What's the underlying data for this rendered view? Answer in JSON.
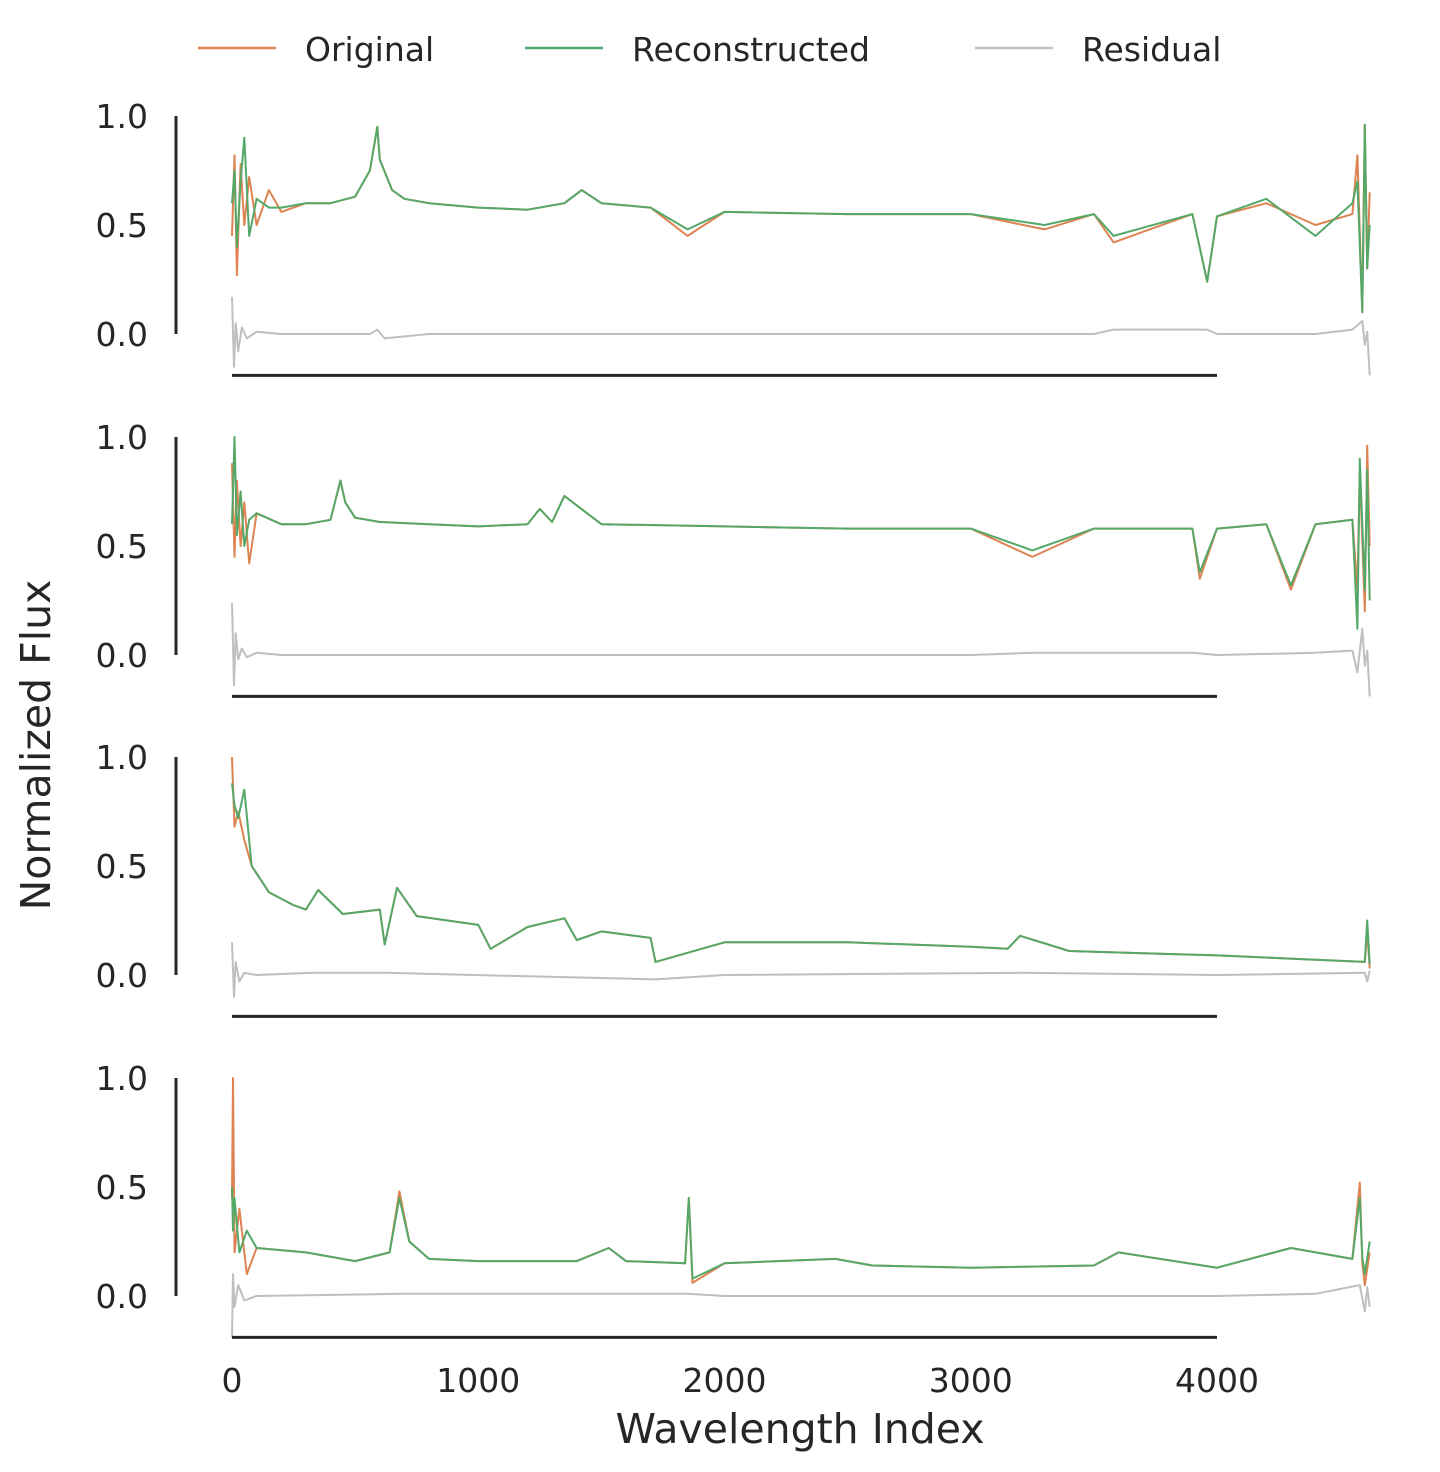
{
  "chart_data": {
    "type": "line",
    "xlabel": "Wavelength Index",
    "ylabel": "Normalized Flux",
    "xlim": [
      0,
      4620
    ],
    "ylim": [
      -0.19,
      1.0
    ],
    "xticks": [
      "0",
      "1000",
      "2000",
      "3000",
      "4000"
    ],
    "yticks": [
      "0.0",
      "0.5",
      "1.0"
    ],
    "grid": false,
    "legend_placement": "top-center",
    "legend": [
      "Original",
      "Reconstructed",
      "Residual"
    ],
    "colors": {
      "Original": "#dd8452",
      "Reconstructed": "#55a868",
      "Residual": "#bfbfbf"
    },
    "panels": [
      {
        "series": [
          {
            "name": "Original",
            "x": [
              0,
              10,
              20,
              35,
              50,
              70,
              100,
              150,
              200,
              300,
              400,
              500,
              560,
              590,
              600,
              650,
              700,
              800,
              1000,
              1200,
              1350,
              1420,
              1500,
              1700,
              1850,
              2000,
              2500,
              3000,
              3300,
              3500,
              3580,
              3900,
              3960,
              4000,
              4200,
              4400,
              4550,
              4570,
              4590,
              4600,
              4610,
              4620
            ],
            "y": [
              0.45,
              0.82,
              0.27,
              0.78,
              0.5,
              0.72,
              0.5,
              0.66,
              0.56,
              0.6,
              0.6,
              0.63,
              0.75,
              0.95,
              0.8,
              0.66,
              0.62,
              0.6,
              0.58,
              0.57,
              0.6,
              0.66,
              0.6,
              0.58,
              0.45,
              0.56,
              0.55,
              0.55,
              0.48,
              0.55,
              0.42,
              0.55,
              0.24,
              0.54,
              0.6,
              0.5,
              0.55,
              0.82,
              0.1,
              0.96,
              0.3,
              0.65
            ]
          },
          {
            "name": "Reconstructed",
            "x": [
              0,
              10,
              20,
              35,
              50,
              70,
              100,
              150,
              200,
              300,
              400,
              500,
              560,
              590,
              600,
              650,
              700,
              800,
              1000,
              1200,
              1350,
              1420,
              1500,
              1700,
              1850,
              2000,
              2500,
              3000,
              3300,
              3500,
              3580,
              3900,
              3960,
              4000,
              4200,
              4400,
              4550,
              4570,
              4590,
              4600,
              4610,
              4620
            ],
            "y": [
              0.6,
              0.75,
              0.4,
              0.7,
              0.9,
              0.45,
              0.62,
              0.58,
              0.58,
              0.6,
              0.6,
              0.63,
              0.75,
              0.95,
              0.8,
              0.66,
              0.62,
              0.6,
              0.58,
              0.57,
              0.6,
              0.66,
              0.6,
              0.58,
              0.48,
              0.56,
              0.55,
              0.55,
              0.5,
              0.55,
              0.45,
              0.55,
              0.24,
              0.54,
              0.62,
              0.45,
              0.6,
              0.7,
              0.1,
              0.96,
              0.3,
              0.5
            ]
          },
          {
            "name": "Residual",
            "x": [
              0,
              8,
              15,
              25,
              40,
              60,
              100,
              200,
              560,
              590,
              620,
              800,
              2000,
              3500,
              3580,
              3960,
              4000,
              4400,
              4550,
              4590,
              4600,
              4610,
              4620
            ],
            "y": [
              0.17,
              -0.15,
              0.05,
              -0.08,
              0.03,
              -0.02,
              0.01,
              0,
              0,
              0.02,
              -0.02,
              0,
              0,
              0,
              0.02,
              0.02,
              0,
              0,
              0.02,
              0.06,
              -0.05,
              0.01,
              -0.19
            ]
          }
        ]
      },
      {
        "series": [
          {
            "name": "Original",
            "x": [
              0,
              10,
              20,
              35,
              50,
              70,
              100,
              200,
              300,
              400,
              440,
              460,
              500,
              600,
              800,
              1000,
              1200,
              1250,
              1300,
              1350,
              1500,
              2000,
              2500,
              3000,
              3250,
              3500,
              3900,
              3930,
              4000,
              4200,
              4300,
              4400,
              4550,
              4570,
              4580,
              4600,
              4610,
              4620
            ],
            "y": [
              0.88,
              0.45,
              0.8,
              0.5,
              0.7,
              0.42,
              0.65,
              0.6,
              0.6,
              0.62,
              0.8,
              0.7,
              0.63,
              0.61,
              0.6,
              0.59,
              0.6,
              0.67,
              0.61,
              0.73,
              0.6,
              0.59,
              0.58,
              0.58,
              0.45,
              0.58,
              0.58,
              0.35,
              0.58,
              0.6,
              0.3,
              0.6,
              0.62,
              0.3,
              0.85,
              0.2,
              0.96,
              0.5
            ]
          },
          {
            "name": "Reconstructed",
            "x": [
              0,
              10,
              20,
              35,
              50,
              70,
              100,
              200,
              300,
              400,
              440,
              460,
              500,
              600,
              800,
              1000,
              1200,
              1250,
              1300,
              1350,
              1500,
              2000,
              2500,
              3000,
              3250,
              3500,
              3900,
              3930,
              4000,
              4200,
              4300,
              4400,
              4550,
              4570,
              4580,
              4600,
              4610,
              4620
            ],
            "y": [
              0.6,
              1.0,
              0.55,
              0.75,
              0.5,
              0.62,
              0.65,
              0.6,
              0.6,
              0.62,
              0.8,
              0.7,
              0.63,
              0.61,
              0.6,
              0.59,
              0.6,
              0.67,
              0.61,
              0.73,
              0.6,
              0.59,
              0.58,
              0.58,
              0.48,
              0.58,
              0.58,
              0.38,
              0.58,
              0.6,
              0.32,
              0.6,
              0.62,
              0.12,
              0.9,
              0.3,
              0.85,
              0.25
            ]
          },
          {
            "name": "Residual",
            "x": [
              0,
              8,
              15,
              25,
              40,
              60,
              100,
              200,
              400,
              1000,
              2000,
              3000,
              3250,
              3900,
              4000,
              4400,
              4550,
              4570,
              4590,
              4600,
              4610,
              4620
            ],
            "y": [
              0.24,
              -0.14,
              0.1,
              -0.02,
              0.03,
              -0.01,
              0.01,
              0,
              0,
              0,
              0,
              0,
              0.01,
              0.01,
              0,
              0.01,
              0.02,
              -0.08,
              0.12,
              -0.05,
              0.02,
              -0.19
            ]
          }
        ]
      },
      {
        "series": [
          {
            "name": "Original",
            "x": [
              0,
              10,
              25,
              50,
              80,
              150,
              250,
              300,
              350,
              450,
              600,
              620,
              670,
              750,
              1000,
              1050,
              1200,
              1350,
              1400,
              1500,
              1700,
              1720,
              2000,
              2500,
              3000,
              3150,
              3200,
              3400,
              3700,
              4000,
              4400,
              4600,
              4610,
              4620
            ],
            "y": [
              1.0,
              0.68,
              0.75,
              0.62,
              0.5,
              0.38,
              0.32,
              0.3,
              0.39,
              0.28,
              0.3,
              0.14,
              0.4,
              0.27,
              0.23,
              0.12,
              0.22,
              0.26,
              0.16,
              0.2,
              0.17,
              0.06,
              0.15,
              0.15,
              0.13,
              0.12,
              0.18,
              0.11,
              0.1,
              0.09,
              0.07,
              0.06,
              0.2,
              0.03
            ]
          },
          {
            "name": "Reconstructed",
            "x": [
              0,
              10,
              25,
              50,
              80,
              150,
              250,
              300,
              350,
              450,
              600,
              620,
              670,
              750,
              1000,
              1050,
              1200,
              1350,
              1400,
              1500,
              1700,
              1720,
              2000,
              2500,
              3000,
              3150,
              3200,
              3400,
              3700,
              4000,
              4400,
              4600,
              4610,
              4620
            ],
            "y": [
              0.88,
              0.78,
              0.72,
              0.85,
              0.5,
              0.38,
              0.32,
              0.3,
              0.39,
              0.28,
              0.3,
              0.14,
              0.4,
              0.27,
              0.23,
              0.12,
              0.22,
              0.26,
              0.16,
              0.2,
              0.17,
              0.06,
              0.15,
              0.15,
              0.13,
              0.12,
              0.18,
              0.11,
              0.1,
              0.09,
              0.07,
              0.06,
              0.25,
              0.05
            ]
          },
          {
            "name": "Residual",
            "x": [
              0,
              8,
              15,
              30,
              50,
              100,
              330,
              620,
              1720,
              2000,
              3200,
              4000,
              4600,
              4610,
              4620
            ],
            "y": [
              0.15,
              -0.1,
              0.06,
              -0.03,
              0.01,
              0,
              0.01,
              0.01,
              -0.02,
              0,
              0.01,
              0,
              0.01,
              -0.03,
              0.02
            ]
          }
        ]
      },
      {
        "series": [
          {
            "name": "Original",
            "x": [
              0,
              4,
              10,
              30,
              60,
              100,
              300,
              500,
              640,
              680,
              720,
              800,
              1000,
              1400,
              1530,
              1600,
              1840,
              1855,
              1870,
              2000,
              2450,
              2600,
              3000,
              3500,
              3600,
              4000,
              4300,
              4550,
              4580,
              4590,
              4600,
              4620
            ],
            "y": [
              0.45,
              1.0,
              0.2,
              0.4,
              0.1,
              0.22,
              0.2,
              0.16,
              0.2,
              0.48,
              0.25,
              0.17,
              0.16,
              0.16,
              0.22,
              0.16,
              0.15,
              0.45,
              0.06,
              0.15,
              0.17,
              0.14,
              0.13,
              0.14,
              0.2,
              0.13,
              0.22,
              0.17,
              0.52,
              0.15,
              0.05,
              0.2
            ]
          },
          {
            "name": "Reconstructed",
            "x": [
              0,
              4,
              10,
              30,
              60,
              100,
              300,
              500,
              640,
              680,
              720,
              800,
              1000,
              1400,
              1530,
              1600,
              1840,
              1855,
              1870,
              2000,
              2450,
              2600,
              3000,
              3500,
              3600,
              4000,
              4300,
              4550,
              4580,
              4590,
              4600,
              4620
            ],
            "y": [
              0.5,
              0.3,
              0.45,
              0.2,
              0.3,
              0.22,
              0.2,
              0.16,
              0.2,
              0.45,
              0.25,
              0.17,
              0.16,
              0.16,
              0.22,
              0.16,
              0.15,
              0.45,
              0.08,
              0.15,
              0.17,
              0.14,
              0.13,
              0.14,
              0.2,
              0.13,
              0.22,
              0.17,
              0.45,
              0.18,
              0.1,
              0.25
            ]
          },
          {
            "name": "Residual",
            "x": [
              0,
              4,
              10,
              25,
              50,
              100,
              680,
              1850,
              2000,
              4000,
              4400,
              4580,
              4600,
              4610,
              4620
            ],
            "y": [
              -0.19,
              0.1,
              -0.05,
              0.05,
              -0.02,
              0,
              0.01,
              0.01,
              0,
              0,
              0.01,
              0.05,
              -0.07,
              0.04,
              -0.05
            ]
          }
        ]
      }
    ]
  }
}
